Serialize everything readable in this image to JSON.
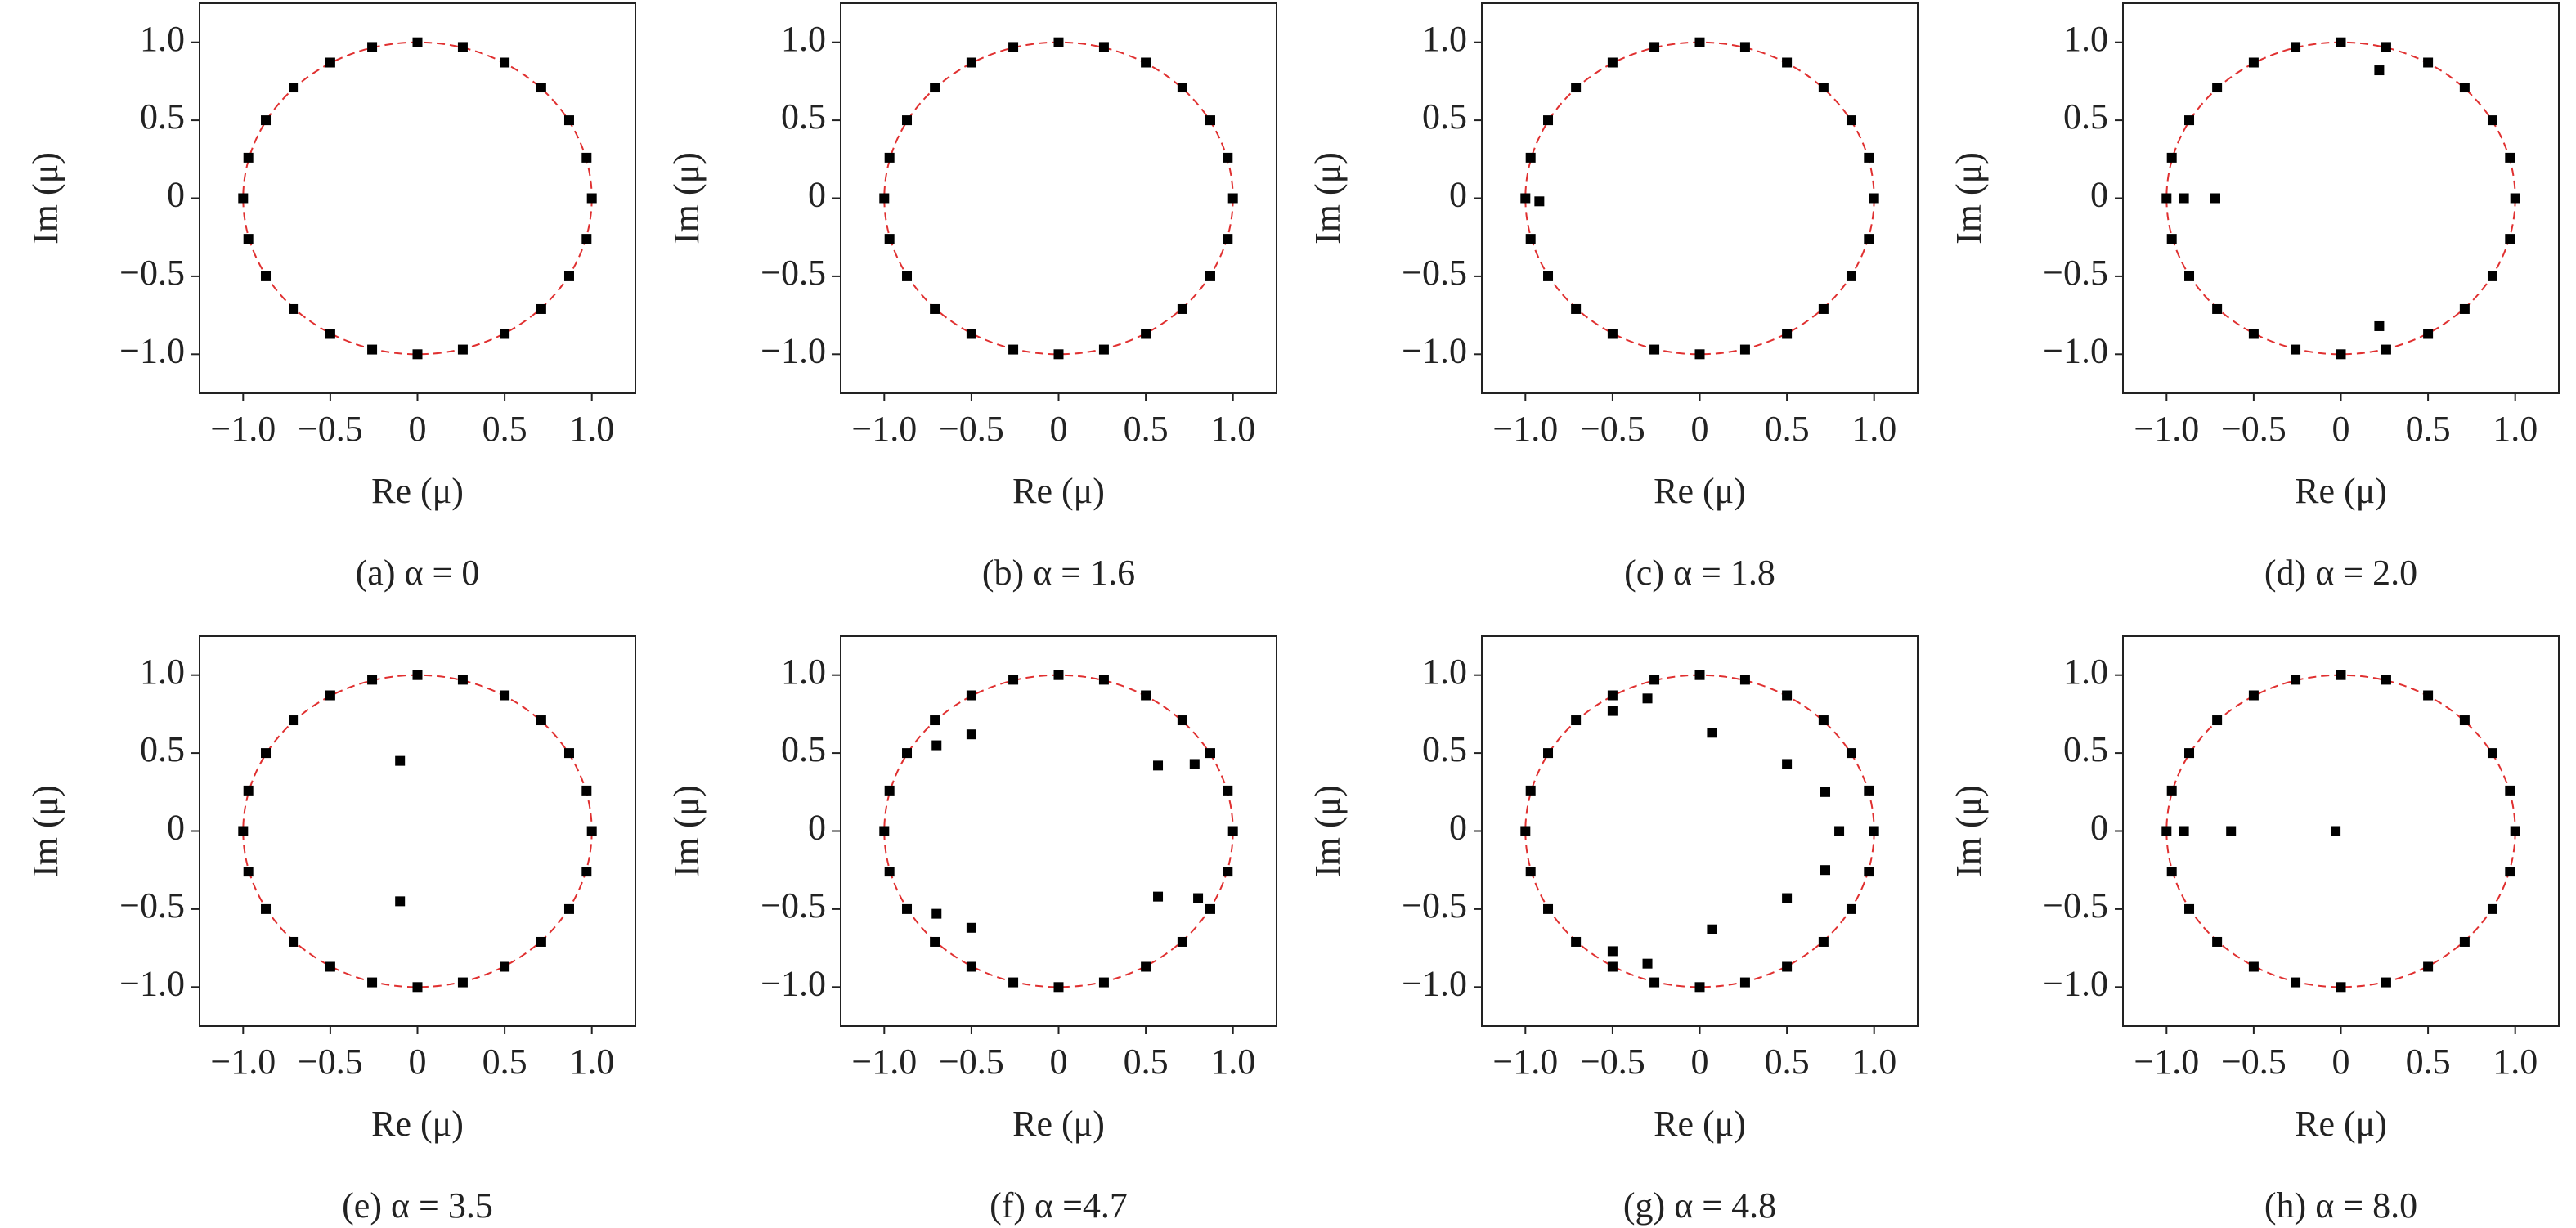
{
  "chart_data": [
    {
      "type": "scatter",
      "caption": "(a) α = 0",
      "x_label": "Re (μ)",
      "y_label": "Im (μ)",
      "color": "#000000",
      "xlim": [
        -1.25,
        1.25
      ],
      "ylim": [
        -1.25,
        1.25
      ],
      "xticks": [
        {
          "value": -1,
          "label": "−1.0"
        },
        {
          "value": -0.5,
          "label": "−0.5"
        },
        0,
        0.5,
        {
          "value": 1,
          "label": "1.0"
        }
      ],
      "yticks": [
        {
          "value": -1,
          "label": "−1.0"
        },
        {
          "value": -0.5,
          "label": "−0.5"
        },
        0,
        0.5,
        {
          "value": 1,
          "label": "1.0"
        }
      ],
      "x": [
        1,
        0.97,
        0.87,
        0.71,
        0.5,
        0.26,
        0,
        -0.26,
        -0.5,
        -0.71,
        -0.87,
        -0.97,
        -1,
        -0.97,
        -0.87,
        -0.71,
        -0.5,
        -0.26,
        0,
        0.26,
        0.5,
        0.71,
        0.87,
        0.97
      ],
      "y": [
        0,
        0.26,
        0.5,
        0.71,
        0.87,
        0.97,
        1,
        0.97,
        0.87,
        0.71,
        0.5,
        0.26,
        0,
        -0.26,
        -0.5,
        -0.71,
        -0.87,
        -0.97,
        -1,
        -0.97,
        -0.87,
        -0.71,
        -0.5,
        -0.26
      ]
    },
    {
      "type": "scatter",
      "caption": "(b) α = 1.6",
      "x_label": "Re (μ)",
      "y_label": "Im (μ)",
      "color": "#000000",
      "xlim": [
        -1.25,
        1.25
      ],
      "ylim": [
        -1.25,
        1.25
      ],
      "xticks": [
        {
          "value": -1,
          "label": "−1.0"
        },
        {
          "value": -0.5,
          "label": "−0.5"
        },
        0,
        0.5,
        {
          "value": 1,
          "label": "1.0"
        }
      ],
      "yticks": [
        {
          "value": -1,
          "label": "−1.0"
        },
        {
          "value": -0.5,
          "label": "−0.5"
        },
        0,
        0.5,
        {
          "value": 1,
          "label": "1.0"
        }
      ],
      "x": [
        1,
        0.97,
        0.87,
        0.71,
        0.5,
        0.26,
        0,
        -0.26,
        -0.5,
        -0.71,
        -0.87,
        -0.97,
        -1,
        -0.97,
        -0.87,
        -0.71,
        -0.5,
        -0.26,
        0,
        0.26,
        0.5,
        0.71,
        0.87,
        0.97
      ],
      "y": [
        0,
        0.26,
        0.5,
        0.71,
        0.87,
        0.97,
        1,
        0.97,
        0.87,
        0.71,
        0.5,
        0.26,
        0,
        -0.26,
        -0.5,
        -0.71,
        -0.87,
        -0.97,
        -1,
        -0.97,
        -0.87,
        -0.71,
        -0.5,
        -0.26
      ]
    },
    {
      "type": "scatter",
      "caption": "(c) α = 1.8",
      "x_label": "Re (μ)",
      "y_label": "Im (μ)",
      "color": "#000000",
      "xlim": [
        -1.25,
        1.25
      ],
      "ylim": [
        -1.25,
        1.25
      ],
      "xticks": [
        {
          "value": -1,
          "label": "−1.0"
        },
        {
          "value": -0.5,
          "label": "−0.5"
        },
        0,
        0.5,
        {
          "value": 1,
          "label": "1.0"
        }
      ],
      "yticks": [
        {
          "value": -1,
          "label": "−1.0"
        },
        {
          "value": -0.5,
          "label": "−0.5"
        },
        0,
        0.5,
        {
          "value": 1,
          "label": "1.0"
        }
      ],
      "x": [
        1,
        0.97,
        0.87,
        0.71,
        0.5,
        0.26,
        0,
        -0.26,
        -0.5,
        -0.71,
        -0.87,
        -0.97,
        -1,
        -0.97,
        -0.87,
        -0.71,
        -0.5,
        -0.26,
        0,
        0.26,
        0.5,
        0.71,
        0.87,
        0.97,
        -0.92
      ],
      "y": [
        0,
        0.26,
        0.5,
        0.71,
        0.87,
        0.97,
        1,
        0.97,
        0.87,
        0.71,
        0.5,
        0.26,
        0,
        -0.26,
        -0.5,
        -0.71,
        -0.87,
        -0.97,
        -1,
        -0.97,
        -0.87,
        -0.71,
        -0.5,
        -0.26,
        -0.02
      ]
    },
    {
      "type": "scatter",
      "caption": "(d) α = 2.0",
      "x_label": "Re (μ)",
      "y_label": "Im (μ)",
      "color": "#000000",
      "xlim": [
        -1.25,
        1.25
      ],
      "ylim": [
        -1.25,
        1.25
      ],
      "xticks": [
        {
          "value": -1,
          "label": "−1.0"
        },
        {
          "value": -0.5,
          "label": "−0.5"
        },
        0,
        0.5,
        {
          "value": 1,
          "label": "1.0"
        }
      ],
      "yticks": [
        {
          "value": -1,
          "label": "−1.0"
        },
        {
          "value": -0.5,
          "label": "−0.5"
        },
        0,
        0.5,
        {
          "value": 1,
          "label": "1.0"
        }
      ],
      "x": [
        1,
        0.97,
        0.87,
        0.71,
        0.5,
        0.26,
        0,
        -0.26,
        -0.5,
        -0.71,
        -0.87,
        -0.97,
        -1,
        -0.97,
        -0.87,
        -0.71,
        -0.5,
        -0.26,
        0,
        0.26,
        0.5,
        0.71,
        0.87,
        0.97,
        -0.72,
        -0.9,
        0.22,
        0.22
      ],
      "y": [
        0,
        0.26,
        0.5,
        0.71,
        0.87,
        0.97,
        1,
        0.97,
        0.87,
        0.71,
        0.5,
        0.26,
        0,
        -0.26,
        -0.5,
        -0.71,
        -0.87,
        -0.97,
        -1,
        -0.97,
        -0.87,
        -0.71,
        -0.5,
        -0.26,
        0,
        0,
        0.82,
        -0.82
      ]
    },
    {
      "type": "scatter",
      "caption": "(e) α = 3.5",
      "x_label": "Re (μ)",
      "y_label": "Im (μ)",
      "color": "#000000",
      "xlim": [
        -1.25,
        1.25
      ],
      "ylim": [
        -1.25,
        1.25
      ],
      "xticks": [
        {
          "value": -1,
          "label": "−1.0"
        },
        {
          "value": -0.5,
          "label": "−0.5"
        },
        0,
        0.5,
        {
          "value": 1,
          "label": "1.0"
        }
      ],
      "yticks": [
        {
          "value": -1,
          "label": "−1.0"
        },
        {
          "value": -0.5,
          "label": "−0.5"
        },
        0,
        0.5,
        {
          "value": 1,
          "label": "1.0"
        }
      ],
      "x": [
        1,
        0.97,
        0.87,
        0.71,
        0.5,
        0.26,
        0,
        -0.26,
        -0.5,
        -0.71,
        -0.87,
        -0.97,
        -1,
        -0.97,
        -0.87,
        -0.71,
        -0.5,
        -0.26,
        0,
        0.26,
        0.5,
        0.71,
        0.87,
        0.97,
        -0.1,
        -0.1
      ],
      "y": [
        0,
        0.26,
        0.5,
        0.71,
        0.87,
        0.97,
        1,
        0.97,
        0.87,
        0.71,
        0.5,
        0.26,
        0,
        -0.26,
        -0.5,
        -0.71,
        -0.87,
        -0.97,
        -1,
        -0.97,
        -0.87,
        -0.71,
        -0.5,
        -0.26,
        0.45,
        -0.45
      ]
    },
    {
      "type": "scatter",
      "caption": "(f) α =4.7",
      "x_label": "Re (μ)",
      "y_label": "Im (μ)",
      "color": "#000000",
      "xlim": [
        -1.25,
        1.25
      ],
      "ylim": [
        -1.25,
        1.25
      ],
      "xticks": [
        {
          "value": -1,
          "label": "−1.0"
        },
        {
          "value": -0.5,
          "label": "−0.5"
        },
        0,
        0.5,
        {
          "value": 1,
          "label": "1.0"
        }
      ],
      "yticks": [
        {
          "value": -1,
          "label": "−1.0"
        },
        {
          "value": -0.5,
          "label": "−0.5"
        },
        0,
        0.5,
        {
          "value": 1,
          "label": "1.0"
        }
      ],
      "x": [
        1,
        0.97,
        0.87,
        0.71,
        0.5,
        0.26,
        0,
        -0.26,
        -0.5,
        -0.71,
        -0.87,
        -0.97,
        -1,
        -0.97,
        -0.87,
        -0.71,
        -0.5,
        -0.26,
        0,
        0.26,
        0.5,
        0.71,
        0.87,
        0.97,
        -0.7,
        -0.5,
        -0.7,
        -0.5,
        0.57,
        0.57,
        0.78,
        0.8
      ],
      "y": [
        0,
        0.26,
        0.5,
        0.71,
        0.87,
        0.97,
        1,
        0.97,
        0.87,
        0.71,
        0.5,
        0.26,
        0,
        -0.26,
        -0.5,
        -0.71,
        -0.87,
        -0.97,
        -1,
        -0.97,
        -0.87,
        -0.71,
        -0.5,
        -0.26,
        0.55,
        0.62,
        -0.53,
        -0.62,
        0.42,
        -0.42,
        0.43,
        -0.43
      ]
    },
    {
      "type": "scatter",
      "caption": "(g) α = 4.8",
      "x_label": "Re (μ)",
      "y_label": "Im (μ)",
      "color": "#000000",
      "xlim": [
        -1.25,
        1.25
      ],
      "ylim": [
        -1.25,
        1.25
      ],
      "xticks": [
        {
          "value": -1,
          "label": "−1.0"
        },
        {
          "value": -0.5,
          "label": "−0.5"
        },
        0,
        0.5,
        {
          "value": 1,
          "label": "1.0"
        }
      ],
      "yticks": [
        {
          "value": -1,
          "label": "−1.0"
        },
        {
          "value": -0.5,
          "label": "−0.5"
        },
        0,
        0.5,
        {
          "value": 1,
          "label": "1.0"
        }
      ],
      "x": [
        1,
        0.97,
        0.87,
        0.71,
        0.5,
        0.26,
        0,
        -0.26,
        -0.5,
        -0.71,
        -0.87,
        -0.97,
        -1,
        -0.97,
        -0.87,
        -0.71,
        -0.5,
        -0.26,
        0,
        0.26,
        0.5,
        0.71,
        0.87,
        0.97,
        0.07,
        0.07,
        0.5,
        0.5,
        0.72,
        0.72,
        0.8,
        -0.3,
        -0.3,
        -0.5,
        -0.5
      ],
      "y": [
        0,
        0.26,
        0.5,
        0.71,
        0.87,
        0.97,
        1,
        0.97,
        0.87,
        0.71,
        0.5,
        0.26,
        0,
        -0.26,
        -0.5,
        -0.71,
        -0.87,
        -0.97,
        -1,
        -0.97,
        -0.87,
        -0.71,
        -0.5,
        -0.26,
        0.63,
        -0.63,
        0.43,
        -0.43,
        0.25,
        -0.25,
        0,
        0.85,
        -0.85,
        0.77,
        -0.77
      ]
    },
    {
      "type": "scatter",
      "caption": "(h) α = 8.0",
      "x_label": "Re (μ)",
      "y_label": "Im (μ)",
      "color": "#000000",
      "xlim": [
        -1.25,
        1.25
      ],
      "ylim": [
        -1.25,
        1.25
      ],
      "xticks": [
        {
          "value": -1,
          "label": "−1.0"
        },
        {
          "value": -0.5,
          "label": "−0.5"
        },
        0,
        0.5,
        {
          "value": 1,
          "label": "1.0"
        }
      ],
      "yticks": [
        {
          "value": -1,
          "label": "−1.0"
        },
        {
          "value": -0.5,
          "label": "−0.5"
        },
        0,
        0.5,
        {
          "value": 1,
          "label": "1.0"
        }
      ],
      "x": [
        1,
        0.97,
        0.87,
        0.71,
        0.5,
        0.26,
        0,
        -0.26,
        -0.5,
        -0.71,
        -0.87,
        -0.97,
        -1,
        -0.97,
        -0.87,
        -0.71,
        -0.5,
        -0.26,
        0,
        0.26,
        0.5,
        0.71,
        0.87,
        0.97,
        -0.63,
        -0.03,
        -0.9
      ],
      "y": [
        0,
        0.26,
        0.5,
        0.71,
        0.87,
        0.97,
        1,
        0.97,
        0.87,
        0.71,
        0.5,
        0.26,
        0,
        -0.26,
        -0.5,
        -0.71,
        -0.87,
        -0.97,
        -1,
        -0.97,
        -0.87,
        -0.71,
        -0.5,
        -0.26,
        0,
        0,
        0
      ]
    }
  ]
}
